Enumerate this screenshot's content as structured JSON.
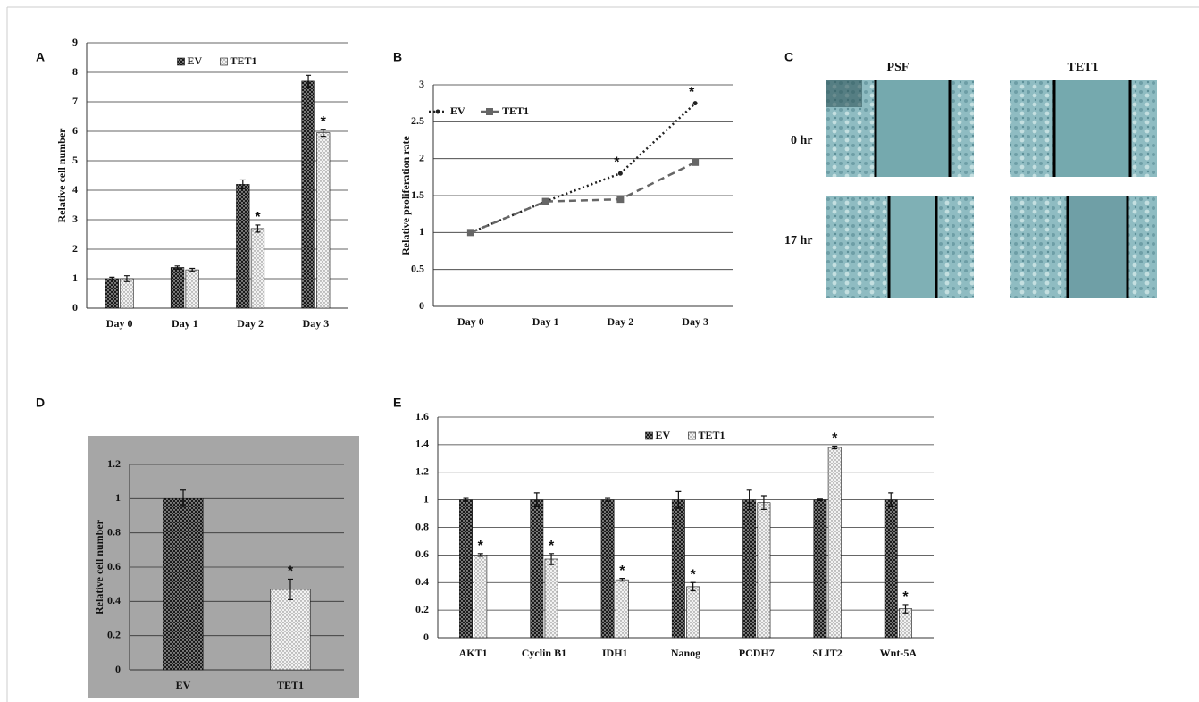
{
  "chart_data": [
    {
      "type": "bar",
      "panel_label": "A",
      "y_label": "Relative cell number",
      "categories": [
        "Day 0",
        "Day 1",
        "Day 2",
        "Day 3"
      ],
      "series": [
        {
          "name": "EV",
          "color": "#1a1a1a",
          "values": [
            1,
            1.38,
            4.2,
            7.7
          ],
          "errors": [
            0.05,
            0.05,
            0.15,
            0.2
          ],
          "annotations": [
            null,
            null,
            null,
            null
          ]
        },
        {
          "name": "TET1",
          "color": "#f2f2f2",
          "values": [
            1,
            1.3,
            2.7,
            5.95
          ],
          "errors": [
            0.1,
            0.05,
            0.12,
            0.12
          ],
          "annotations": [
            null,
            null,
            "*",
            "*"
          ]
        }
      ],
      "ylim": [
        0,
        9
      ],
      "yticks": [
        0,
        1,
        2,
        3,
        4,
        5,
        6,
        7,
        8,
        9
      ],
      "grid": true,
      "legend": "top"
    },
    {
      "type": "line",
      "panel_label": "B",
      "y_label": "Relative proliferation rate",
      "categories": [
        "Day 0",
        "Day 1",
        "Day 2",
        "Day 3"
      ],
      "series": [
        {
          "name": "EV",
          "color": "#222222",
          "values": [
            1,
            1.42,
            1.8,
            2.75
          ],
          "annotations": [
            null,
            null,
            "*",
            "*"
          ]
        },
        {
          "name": "TET1",
          "color": "#666666",
          "values": [
            1,
            1.42,
            1.45,
            1.95
          ],
          "annotations": [
            null,
            null,
            null,
            null
          ]
        }
      ],
      "ylim": [
        0,
        3
      ],
      "yticks": [
        0,
        0.5,
        1,
        1.5,
        2,
        2.5,
        3
      ],
      "grid": true,
      "legend": "top-left"
    },
    {
      "type": "bar",
      "panel_label": "D",
      "y_label": "Relative cell number",
      "categories": [
        "EV",
        "TET1"
      ],
      "values": [
        1,
        0.47
      ],
      "errors": [
        0.05,
        0.06
      ],
      "annotations": [
        null,
        "*"
      ],
      "colors": [
        "#1a1a1a",
        "#f2f2f2"
      ],
      "background": "#a6a6a6",
      "ylim": [
        0,
        1.2
      ],
      "yticks": [
        0,
        0.2,
        0.4,
        0.6,
        0.8,
        1,
        1.2
      ],
      "grid": true
    },
    {
      "type": "bar",
      "panel_label": "E",
      "categories": [
        "AKT1",
        "Cyclin B1",
        "IDH1",
        "Nanog",
        "PCDH7",
        "SLIT2",
        "Wnt-5A"
      ],
      "series": [
        {
          "name": "EV",
          "color": "#1a1a1a",
          "values": [
            1,
            1,
            1,
            1,
            1,
            1,
            1
          ],
          "errors": [
            0.01,
            0.05,
            0.01,
            0.06,
            0.07,
            0.005,
            0.05
          ],
          "annotations": [
            null,
            null,
            null,
            null,
            null,
            null,
            null
          ]
        },
        {
          "name": "TET1",
          "color": "#f2f2f2",
          "values": [
            0.6,
            0.57,
            0.42,
            0.37,
            0.98,
            1.38,
            0.21
          ],
          "errors": [
            0.01,
            0.04,
            0.01,
            0.03,
            0.05,
            0.01,
            0.03
          ],
          "annotations": [
            "*",
            "*",
            "*",
            "*",
            null,
            "*",
            "*"
          ]
        }
      ],
      "ylim": [
        0,
        1.6
      ],
      "yticks": [
        0,
        0.2,
        0.4,
        0.6,
        0.8,
        1,
        1.2,
        1.4,
        1.6
      ],
      "grid": true,
      "legend": "top"
    }
  ],
  "panel_c": {
    "panel_label": "C",
    "columns": [
      "PSF",
      "TET1"
    ],
    "rows": [
      "0 hr",
      "17 hr"
    ]
  }
}
